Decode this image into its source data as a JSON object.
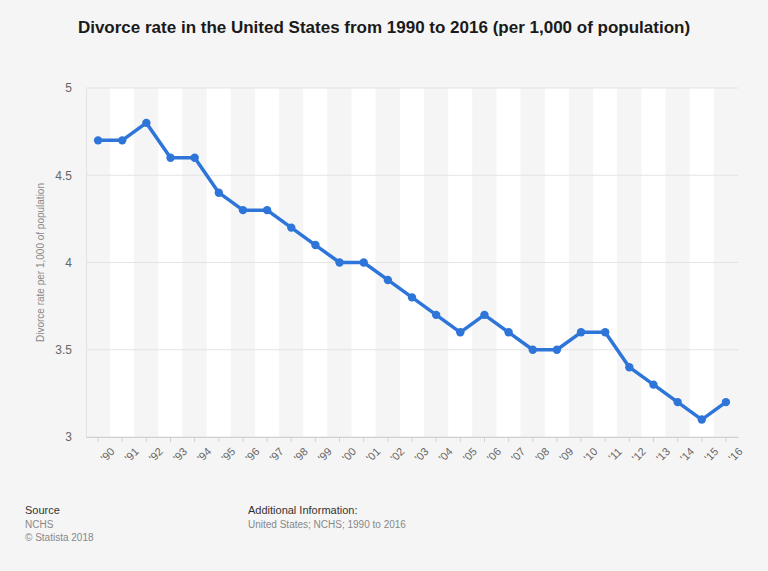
{
  "chart_data": {
    "type": "line",
    "title": "Divorce rate in the United States from 1990 to 2016 (per 1,000 of population)",
    "y_label": "Divorce rate per 1,000 of population",
    "categories": [
      "'90",
      "'91",
      "'92",
      "'93",
      "'94",
      "'95",
      "'96",
      "'97",
      "'98",
      "'99",
      "'00",
      "'01",
      "'02",
      "'03",
      "'04",
      "'05",
      "'06",
      "'07",
      "'08",
      "'09",
      "'10",
      "'11",
      "'12",
      "'13",
      "'14",
      "'15",
      "'16"
    ],
    "values": [
      4.7,
      4.7,
      4.8,
      4.6,
      4.6,
      4.4,
      4.3,
      4.3,
      4.2,
      4.1,
      4.0,
      4.0,
      3.9,
      3.8,
      3.7,
      3.6,
      3.7,
      3.6,
      3.5,
      3.5,
      3.6,
      3.6,
      3.4,
      3.3,
      3.2,
      3.1,
      3.2
    ],
    "color": "#2e75d9",
    "marker": "circle",
    "line_style": "solid",
    "ylim": [
      3,
      5
    ],
    "yticks": [
      3,
      3.5,
      4,
      4.5,
      5
    ],
    "grid": true,
    "source": {
      "heading": "Source",
      "lines": [
        "NCHS",
        "© Statista 2018"
      ]
    },
    "additional_info": {
      "heading": "Additional Information:",
      "text": "United States; NCHS; 1990 to 2016"
    }
  }
}
